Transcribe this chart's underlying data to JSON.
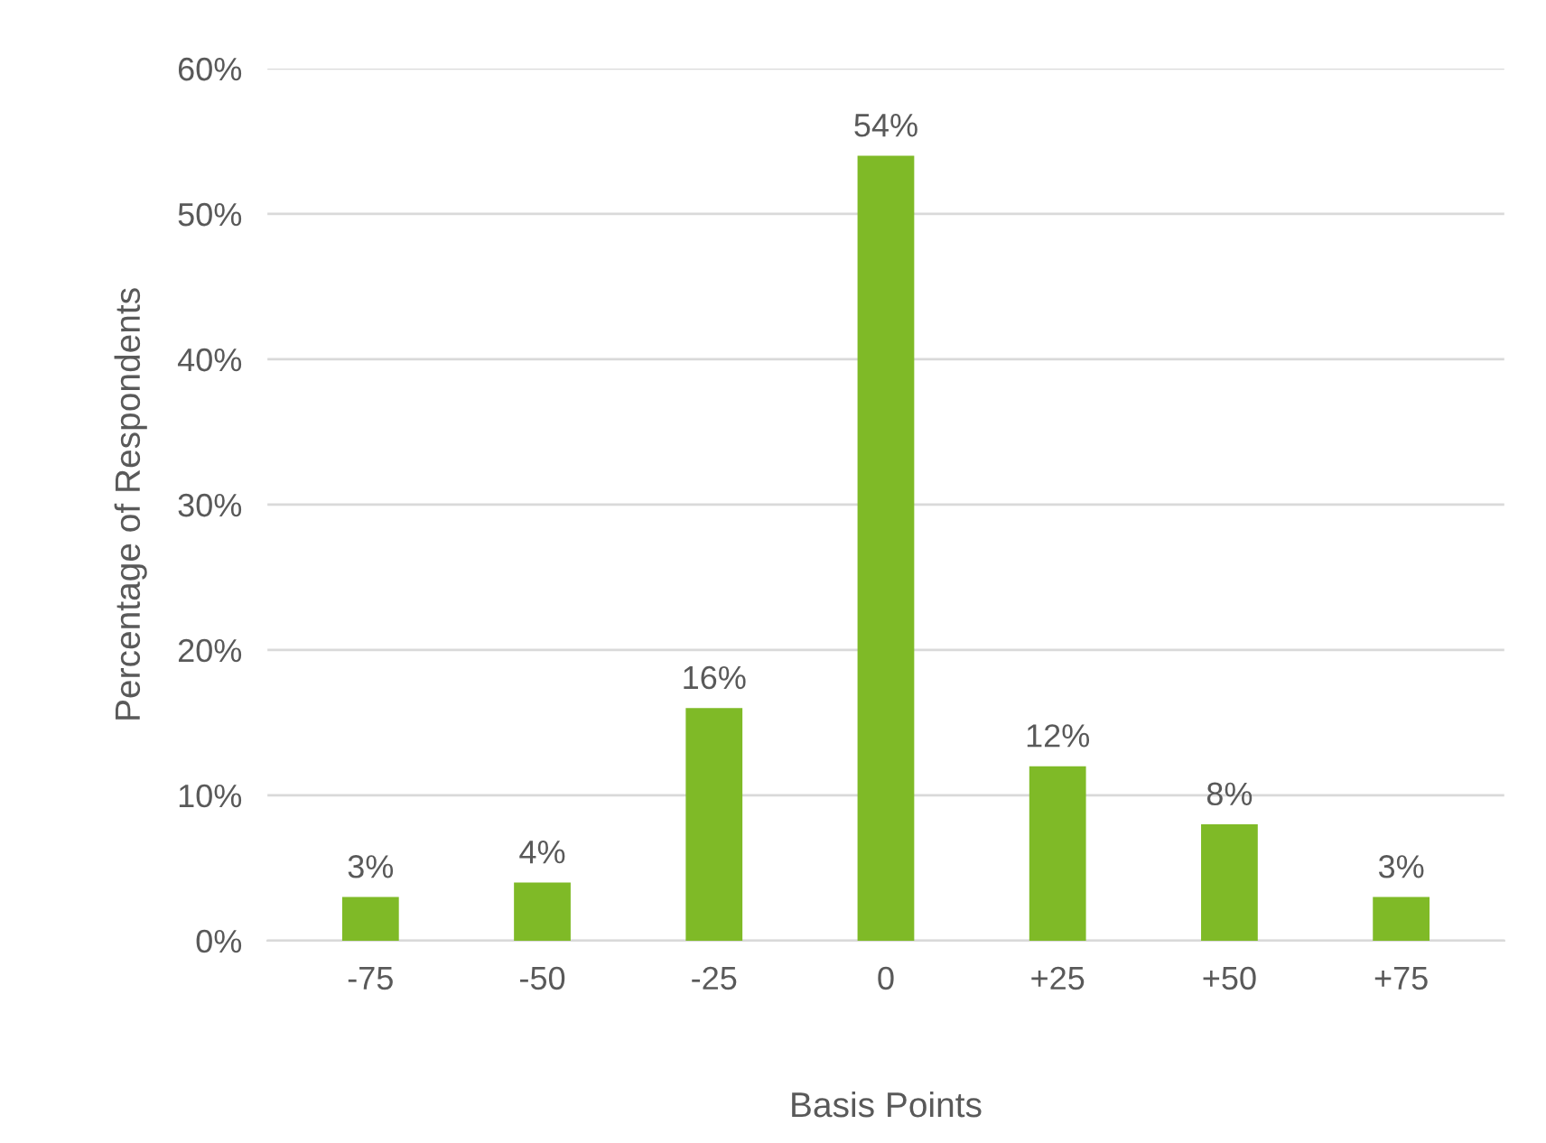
{
  "chart_data": {
    "type": "bar",
    "xlabel": "Basis Points",
    "ylabel": "Percentage of Respondents",
    "categories": [
      "-75",
      "-50",
      "-25",
      "0",
      "+25",
      "+50",
      "+75"
    ],
    "values": [
      3,
      4,
      16,
      54,
      12,
      8,
      3
    ],
    "value_labels": [
      "3%",
      "4%",
      "16%",
      "54%",
      "12%",
      "8%",
      "3%"
    ],
    "color": "#7fba27",
    "ylim": [
      0,
      60
    ],
    "yticks": [
      {
        "value": 0,
        "label": "0%"
      },
      {
        "value": 10,
        "label": "10%"
      },
      {
        "value": 20,
        "label": "20%"
      },
      {
        "value": 30,
        "label": "30%"
      },
      {
        "value": 40,
        "label": "40%"
      },
      {
        "value": 50,
        "label": "50%"
      },
      {
        "value": 60,
        "label": "60%"
      }
    ],
    "grid": "y",
    "legend": false
  }
}
